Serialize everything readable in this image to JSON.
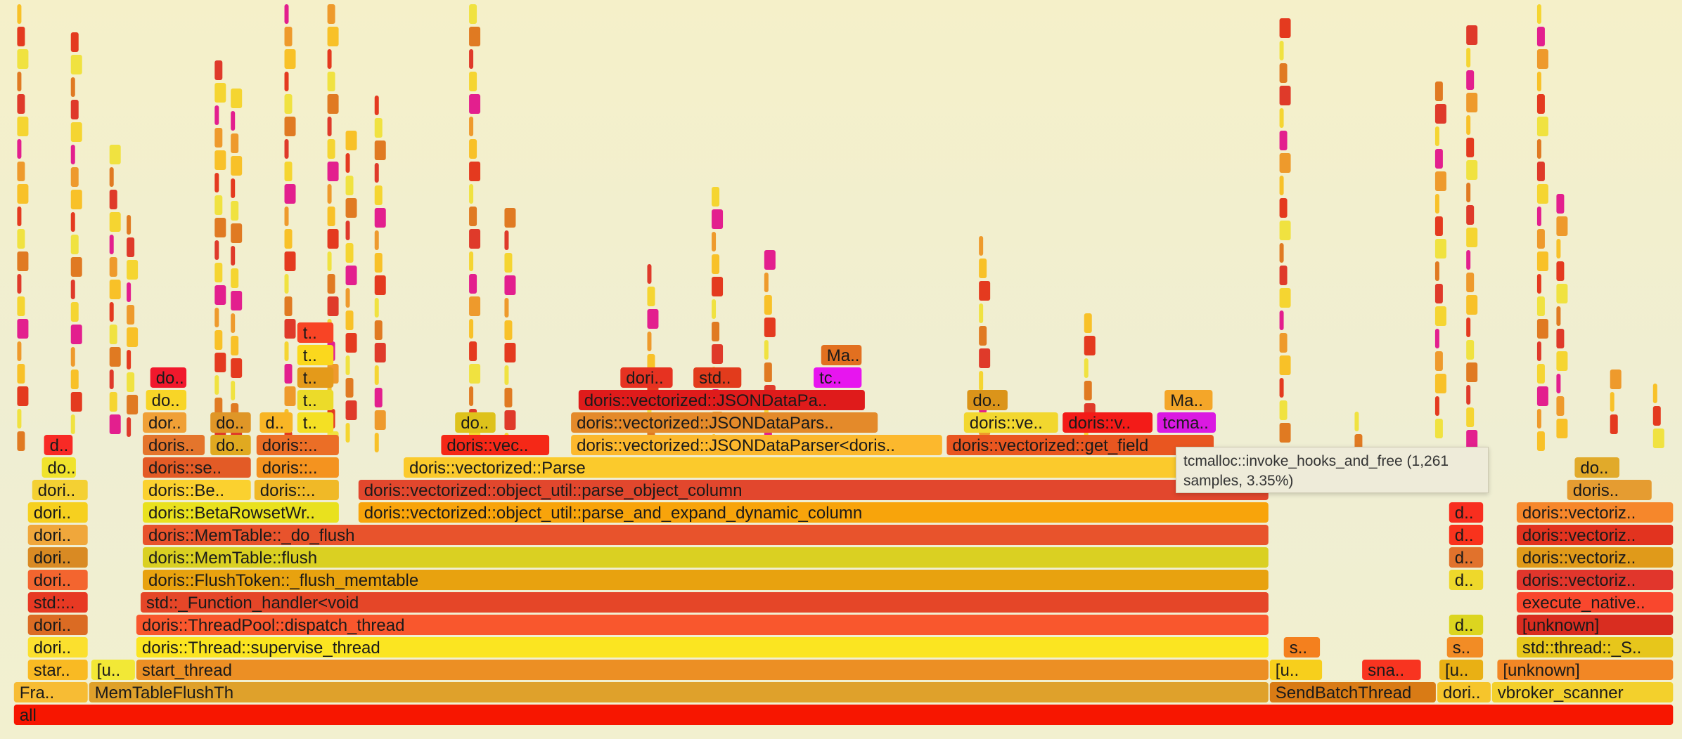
{
  "chart_data": {
    "type": "flamegraph",
    "total_width": 1567,
    "frames": [
      {
        "name": "all",
        "depth": 0,
        "start": 13,
        "width": 1547,
        "color": "#f71600"
      },
      {
        "name": "Fra..",
        "depth": 1,
        "start": 13,
        "width": 70,
        "color": "#f7bc34"
      },
      {
        "name": "MemTableFlushTh",
        "depth": 1,
        "start": 83,
        "width": 1100,
        "color": "#dfa12b"
      },
      {
        "name": "SendBatchThread",
        "depth": 1,
        "start": 1183,
        "width": 156,
        "color": "#d97b15"
      },
      {
        "name": "dori..",
        "depth": 1,
        "start": 1339,
        "width": 51,
        "color": "#f6c52c"
      },
      {
        "name": "vbroker_scanner",
        "depth": 1,
        "start": 1390,
        "width": 170,
        "color": "#f3d02c"
      },
      {
        "name": "star..",
        "depth": 2,
        "start": 26,
        "width": 57,
        "color": "#f9ba23"
      },
      {
        "name": "[u..",
        "depth": 2,
        "start": 85,
        "width": 42,
        "color": "#f2e836"
      },
      {
        "name": "start_thread",
        "depth": 2,
        "start": 127,
        "width": 1056,
        "color": "#ec8f24"
      },
      {
        "name": "[u..",
        "depth": 2,
        "start": 1183,
        "width": 50,
        "color": "#f7cf1c"
      },
      {
        "name": "sna..",
        "depth": 2,
        "start": 1269,
        "width": 56,
        "color": "#f83420"
      },
      {
        "name": "[u..",
        "depth": 2,
        "start": 1341,
        "width": 42,
        "color": "#e9b014"
      },
      {
        "name": "[unknown]",
        "depth": 2,
        "start": 1395,
        "width": 165,
        "color": "#f28725"
      },
      {
        "name": "dori..",
        "depth": 3,
        "start": 26,
        "width": 57,
        "color": "#fbe02e"
      },
      {
        "name": "doris::Thread::supervise_thread",
        "depth": 3,
        "start": 127,
        "width": 1056,
        "color": "#fbe521"
      },
      {
        "name": "s..",
        "depth": 3,
        "start": 1196,
        "width": 35,
        "color": "#f4801e"
      },
      {
        "name": "s..",
        "depth": 3,
        "start": 1348,
        "width": 35,
        "color": "#f28c25"
      },
      {
        "name": "std::thread::_S..",
        "depth": 3,
        "start": 1413,
        "width": 147,
        "color": "#e7c61b"
      },
      {
        "name": "dori..",
        "depth": 4,
        "start": 26,
        "width": 57,
        "color": "#db6b23"
      },
      {
        "name": "doris::ThreadPool::dispatch_thread",
        "depth": 4,
        "start": 127,
        "width": 1056,
        "color": "#f9572d"
      },
      {
        "name": "d..",
        "depth": 4,
        "start": 1350,
        "width": 33,
        "color": "#dcd51f"
      },
      {
        "name": "[unknown]",
        "depth": 4,
        "start": 1413,
        "width": 147,
        "color": "#d92d20"
      },
      {
        "name": "std::..",
        "depth": 5,
        "start": 26,
        "width": 57,
        "color": "#e73923"
      },
      {
        "name": "std::_Function_handler<void",
        "depth": 5,
        "start": 131,
        "width": 1052,
        "color": "#e54628"
      },
      {
        "name": "execute_native..",
        "depth": 5,
        "start": 1413,
        "width": 147,
        "color": "#f9472d"
      },
      {
        "name": "dori..",
        "depth": 6,
        "start": 26,
        "width": 57,
        "color": "#f3652f"
      },
      {
        "name": "doris::FlushToken::_flush_memtable",
        "depth": 6,
        "start": 133,
        "width": 1050,
        "color": "#e8a20f"
      },
      {
        "name": "d..",
        "depth": 6,
        "start": 1350,
        "width": 33,
        "color": "#eed82b"
      },
      {
        "name": "doris::vectoriz..",
        "depth": 6,
        "start": 1413,
        "width": 147,
        "color": "#e1362c"
      },
      {
        "name": "dori..",
        "depth": 7,
        "start": 26,
        "width": 57,
        "color": "#d98a23"
      },
      {
        "name": "doris::MemTable::flush",
        "depth": 7,
        "start": 133,
        "width": 1050,
        "color": "#dad022"
      },
      {
        "name": "d..",
        "depth": 7,
        "start": 1350,
        "width": 33,
        "color": "#e1722c"
      },
      {
        "name": "doris::vectoriz..",
        "depth": 7,
        "start": 1413,
        "width": 147,
        "color": "#e09a1a"
      },
      {
        "name": "dori..",
        "depth": 8,
        "start": 26,
        "width": 57,
        "color": "#f0a73b"
      },
      {
        "name": "doris::MemTable::_do_flush",
        "depth": 8,
        "start": 133,
        "width": 1050,
        "color": "#e8532c"
      },
      {
        "name": "d..",
        "depth": 8,
        "start": 1350,
        "width": 33,
        "color": "#f9331d"
      },
      {
        "name": "doris::vectoriz..",
        "depth": 8,
        "start": 1413,
        "width": 147,
        "color": "#e2331f"
      },
      {
        "name": "dori..",
        "depth": 9,
        "start": 26,
        "width": 57,
        "color": "#f6d01f"
      },
      {
        "name": "doris::BetaRowsetWr..",
        "depth": 9,
        "start": 133,
        "width": 184,
        "color": "#e9e11e"
      },
      {
        "name": "doris::vectorized::object_util::parse_and_expand_dynamic_column",
        "depth": 9,
        "start": 334,
        "width": 849,
        "color": "#f8a40b"
      },
      {
        "name": "d..",
        "depth": 9,
        "start": 1350,
        "width": 33,
        "color": "#f82e1f"
      },
      {
        "name": "doris::vectoriz..",
        "depth": 9,
        "start": 1413,
        "width": 147,
        "color": "#f6872b"
      },
      {
        "name": "dori..",
        "depth": 10,
        "start": 30,
        "width": 53,
        "color": "#f4d033"
      },
      {
        "name": "doris::Be..",
        "depth": 10,
        "start": 133,
        "width": 102,
        "color": "#fbd12f"
      },
      {
        "name": "doris::..",
        "depth": 10,
        "start": 237,
        "width": 80,
        "color": "#f0b927"
      },
      {
        "name": "doris::vectorized::object_util::parse_object_column",
        "depth": 10,
        "start": 334,
        "width": 849,
        "color": "#e2472d"
      },
      {
        "name": "doris..",
        "depth": 10,
        "start": 1460,
        "width": 80,
        "color": "#e59c31"
      },
      {
        "name": "do..",
        "depth": 11,
        "start": 39,
        "width": 33,
        "color": "#f0e32c"
      },
      {
        "name": "doris::se..",
        "depth": 11,
        "start": 133,
        "width": 102,
        "color": "#e35b26"
      },
      {
        "name": "doris::..",
        "depth": 11,
        "start": 239,
        "width": 78,
        "color": "#f4931f"
      },
      {
        "name": "doris::vectorized::Parse",
        "depth": 11,
        "start": 376,
        "width": 807,
        "color": "#fbca2c"
      },
      {
        "name": "do..",
        "depth": 11,
        "start": 1467,
        "width": 43,
        "color": "#e1aa2a"
      },
      {
        "name": "d..",
        "depth": 12,
        "start": 41,
        "width": 28,
        "color": "#f82a25"
      },
      {
        "name": "doris..",
        "depth": 12,
        "start": 133,
        "width": 59,
        "color": "#e4752c"
      },
      {
        "name": "do..",
        "depth": 12,
        "start": 196,
        "width": 39,
        "color": "#e0a920"
      },
      {
        "name": "doris::..",
        "depth": 12,
        "start": 239,
        "width": 78,
        "color": "#eb6e26"
      },
      {
        "name": "doris::vec..",
        "depth": 12,
        "start": 411,
        "width": 102,
        "color": "#f52817"
      },
      {
        "name": "doris::vectorized::JSONDataParser<doris..",
        "depth": 12,
        "start": 532,
        "width": 347,
        "color": "#fcb82d"
      },
      {
        "name": "doris::vectorized::get_field",
        "depth": 12,
        "start": 882,
        "width": 250,
        "color": "#e95620"
      },
      {
        "name": "dor..",
        "depth": 13,
        "start": 133,
        "width": 42,
        "color": "#f0a036"
      },
      {
        "name": "do..",
        "depth": 13,
        "start": 196,
        "width": 39,
        "color": "#df9627"
      },
      {
        "name": "d..",
        "depth": 13,
        "start": 242,
        "width": 32,
        "color": "#f8b525"
      },
      {
        "name": "t..",
        "depth": 13,
        "start": 277,
        "width": 35,
        "color": "#f4e024"
      },
      {
        "name": "do..",
        "depth": 13,
        "start": 424,
        "width": 39,
        "color": "#dec21b"
      },
      {
        "name": "doris::vectorized::JSONDataPars..",
        "depth": 13,
        "start": 532,
        "width": 287,
        "color": "#e48a2a"
      },
      {
        "name": "doris::ve..",
        "depth": 13,
        "start": 898,
        "width": 89,
        "color": "#f2d72f"
      },
      {
        "name": "doris::v..",
        "depth": 13,
        "start": 990,
        "width": 85,
        "color": "#f31b18"
      },
      {
        "name": "tcma..",
        "depth": 13,
        "start": 1078,
        "width": 56,
        "color": "#da19e2"
      },
      {
        "name": "do..",
        "depth": 14,
        "start": 136,
        "width": 39,
        "color": "#f8d527"
      },
      {
        "name": "t..",
        "depth": 14,
        "start": 277,
        "width": 35,
        "color": "#ecdb29"
      },
      {
        "name": "doris::vectorized::JSONDataPa..",
        "depth": 14,
        "start": 539,
        "width": 268,
        "color": "#df1b1b"
      },
      {
        "name": "do..",
        "depth": 14,
        "start": 901,
        "width": 39,
        "color": "#db941a"
      },
      {
        "name": "Ma..",
        "depth": 14,
        "start": 1085,
        "width": 46,
        "color": "#f4a629"
      },
      {
        "name": "do..",
        "depth": 15,
        "start": 140,
        "width": 35,
        "color": "#f1182c"
      },
      {
        "name": "t..",
        "depth": 15,
        "start": 277,
        "width": 35,
        "color": "#e49a1a"
      },
      {
        "name": "dori..",
        "depth": 15,
        "start": 578,
        "width": 50,
        "color": "#e63221"
      },
      {
        "name": "std..",
        "depth": 15,
        "start": 646,
        "width": 46,
        "color": "#e23b1c"
      },
      {
        "name": "tc..",
        "depth": 15,
        "start": 758,
        "width": 46,
        "color": "#e715ef"
      },
      {
        "name": "t..",
        "depth": 16,
        "start": 277,
        "width": 35,
        "color": "#fbd81d"
      },
      {
        "name": "Ma..",
        "depth": 16,
        "start": 765,
        "width": 39,
        "color": "#e27020"
      },
      {
        "name": "t..",
        "depth": 17,
        "start": 277,
        "width": 35,
        "color": "#f84425"
      }
    ],
    "tooltip": {
      "line1": "tcmalloc::invoke_hooks_and_free (1,261",
      "line2": "samples, 3.35%)"
    },
    "palette": [
      "#f71600",
      "#fbe521",
      "#e54628",
      "#f8a40b",
      "#da19e2",
      "#e95620"
    ]
  }
}
